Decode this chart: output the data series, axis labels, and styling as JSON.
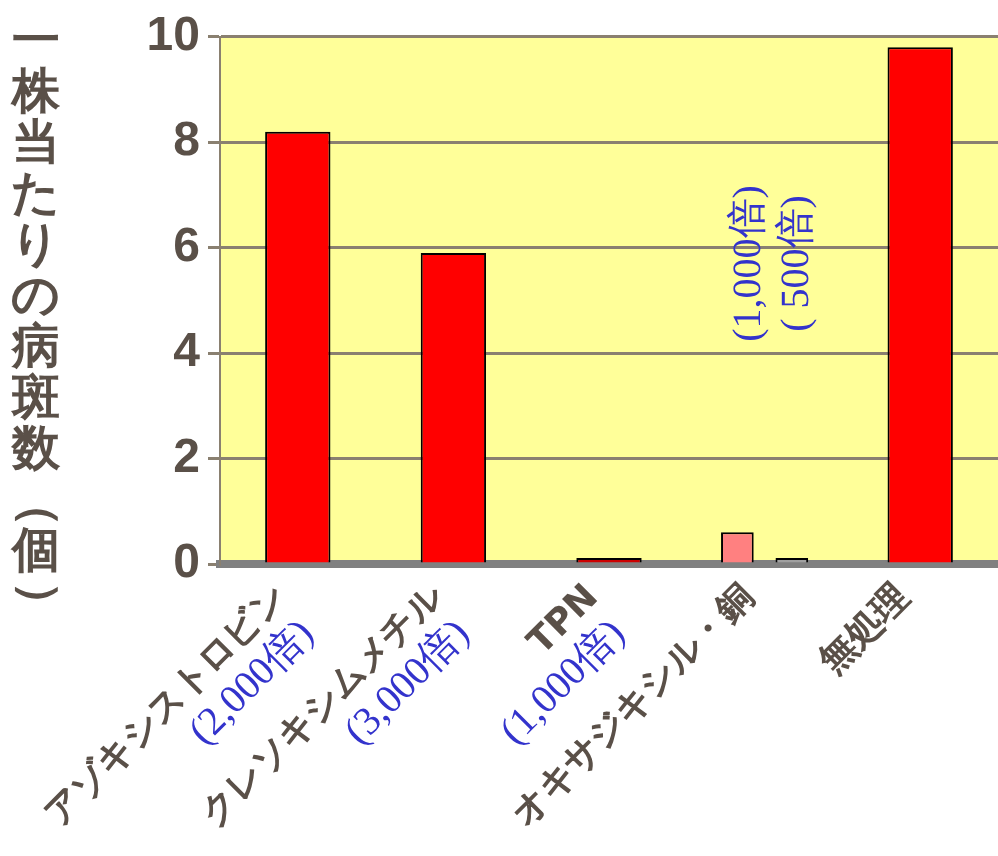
{
  "chart_data": {
    "type": "bar",
    "ylabel": "一株当たりの病斑数（個）",
    "categories": [
      "アゾキシストロビン\n(2,000倍)",
      "クレソキシムメチル\n(3,000倍)",
      "TPN\n(1,000倍)",
      "オキサジキシル・銅",
      "無処理"
    ],
    "series": [
      {
        "colors": [
          "#ff0000",
          "#ff0000",
          "#cc0000",
          "#ff8080",
          "#ff0000"
        ],
        "values": [
          8.2,
          5.9,
          0,
          0.6,
          9.8
        ]
      },
      {
        "color": "#a0a0a0",
        "values": [
          null,
          null,
          null,
          0,
          null
        ]
      }
    ],
    "ylim": [
      0,
      10
    ],
    "yticks": [
      0,
      2,
      4,
      6,
      8,
      10
    ],
    "grid": "y",
    "legend": false,
    "annotations": [
      "(1,000倍)",
      "( 500倍)"
    ]
  }
}
